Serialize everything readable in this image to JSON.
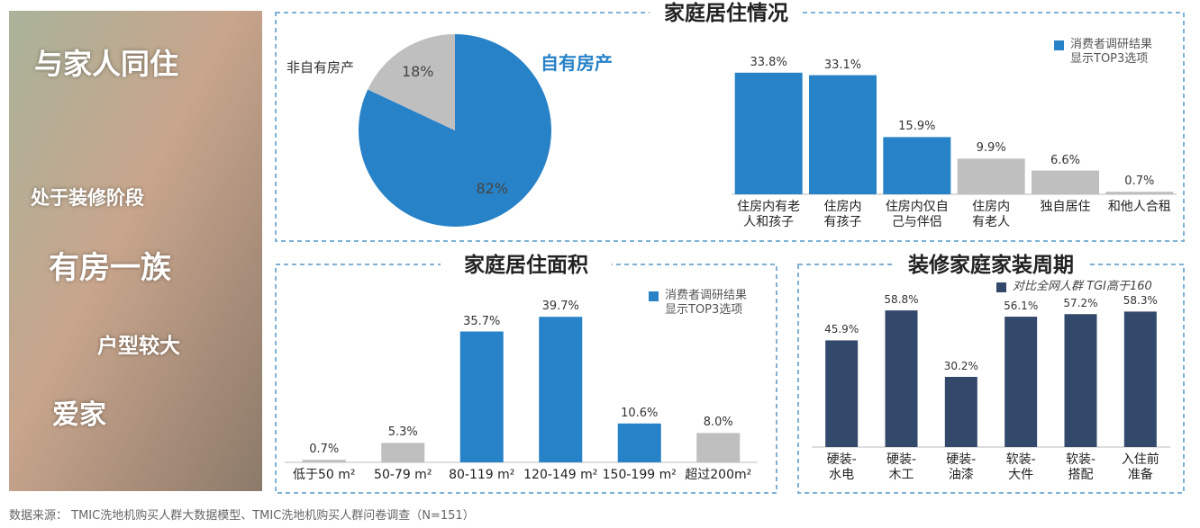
{
  "image_panel": {
    "labels": [
      "与家人同住",
      "处于装修阶段",
      "有房一族",
      "户型较大",
      "爱家"
    ]
  },
  "chart_data": [
    {
      "type": "pie",
      "title": "家庭居住情况",
      "categories": [
        "自有房产",
        "非自有房产"
      ],
      "values": [
        82,
        18
      ],
      "value_labels": [
        "82%",
        "18%"
      ],
      "colors": [
        "#2882c8",
        "#bfbfbf"
      ]
    },
    {
      "type": "bar",
      "categories": [
        "住房内有老\n人和孩子",
        "住房内\n有孩子",
        "住房内仅自\n己与伴侣",
        "住房内\n有老人",
        "独自居住",
        "和他人合租"
      ],
      "series": [
        {
          "name": "消费者调研结果\n显示TOP3选项",
          "color": "#2882c8",
          "bar_colors": [
            "#2882c8",
            "#2882c8",
            "#2882c8",
            "#bfbfbf",
            "#bfbfbf",
            "#bfbfbf"
          ],
          "values": [
            33.8,
            33.1,
            15.9,
            9.9,
            6.6,
            0.7
          ],
          "value_labels": [
            "33.8%",
            "33.1%",
            "15.9%",
            "9.9%",
            "6.6%",
            "0.7%"
          ]
        }
      ],
      "ylim": [
        0,
        40
      ]
    },
    {
      "type": "bar",
      "title": "家庭居住面积",
      "categories": [
        "低于50 m²",
        "50-79 m²",
        "80-119 m²",
        "120-149 m²",
        "150-199 m²",
        "超过200m²"
      ],
      "series": [
        {
          "name": "消费者调研结果\n显示TOP3选项",
          "color": "#2882c8",
          "bar_colors": [
            "#bfbfbf",
            "#bfbfbf",
            "#2882c8",
            "#2882c8",
            "#2882c8",
            "#bfbfbf"
          ],
          "values": [
            0.7,
            5.3,
            35.7,
            39.7,
            10.6,
            8.0
          ],
          "value_labels": [
            "0.7%",
            "5.3%",
            "35.7%",
            "39.7%",
            "10.6%",
            "8.0%"
          ]
        }
      ],
      "ylim": [
        0,
        40
      ]
    },
    {
      "type": "bar",
      "title": "装修家庭家装周期",
      "categories": [
        "硬装-\n水电",
        "硬装-\n木工",
        "硬装-\n油漆",
        "软装-\n大件",
        "软装-\n搭配",
        "入住前\n准备"
      ],
      "series": [
        {
          "name": "对比全网人群 TGI高于160",
          "color": "#33496b",
          "values": [
            45.9,
            58.8,
            30.2,
            56.1,
            57.2,
            58.3
          ],
          "value_labels": [
            "45.9%",
            "58.8%",
            "30.2%",
            "56.1%",
            "57.2%",
            "58.3%"
          ]
        }
      ],
      "ylim": [
        0,
        60
      ]
    }
  ],
  "source": "数据来源： TMIC洗地机购买人群大数据模型、TMIC洗地机购买人群问卷调查（N=151）"
}
